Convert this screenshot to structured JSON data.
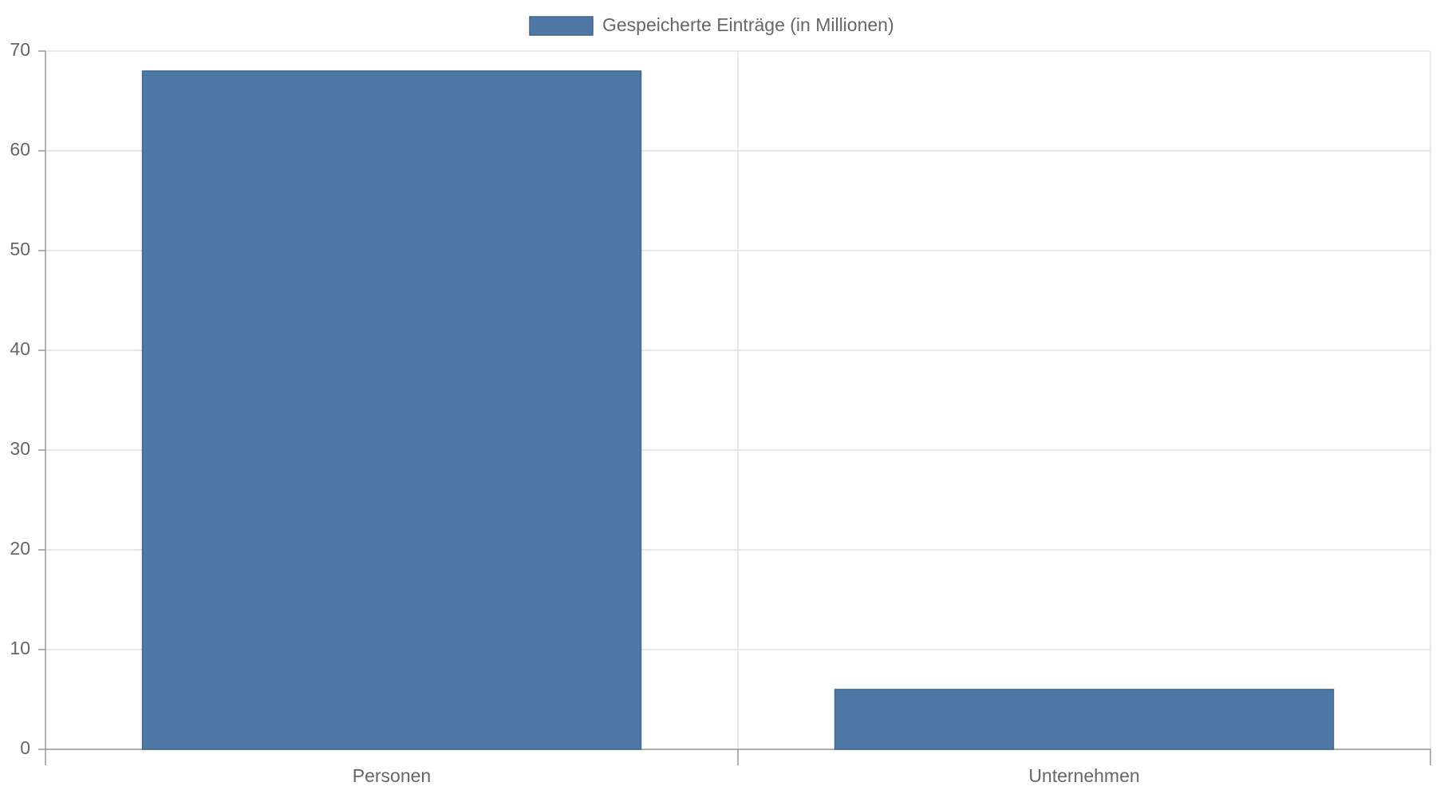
{
  "chart_data": {
    "type": "bar",
    "categories": [
      "Personen",
      "Unternehmen"
    ],
    "series": [
      {
        "name": "Gespeicherte Einträge (in Millionen)",
        "color": "#4e79a7",
        "values": [
          68,
          6
        ]
      }
    ],
    "ylim": [
      0,
      70
    ],
    "yticks": [
      0,
      10,
      20,
      30,
      40,
      50,
      60,
      70
    ],
    "grid": true,
    "legend": "top"
  }
}
